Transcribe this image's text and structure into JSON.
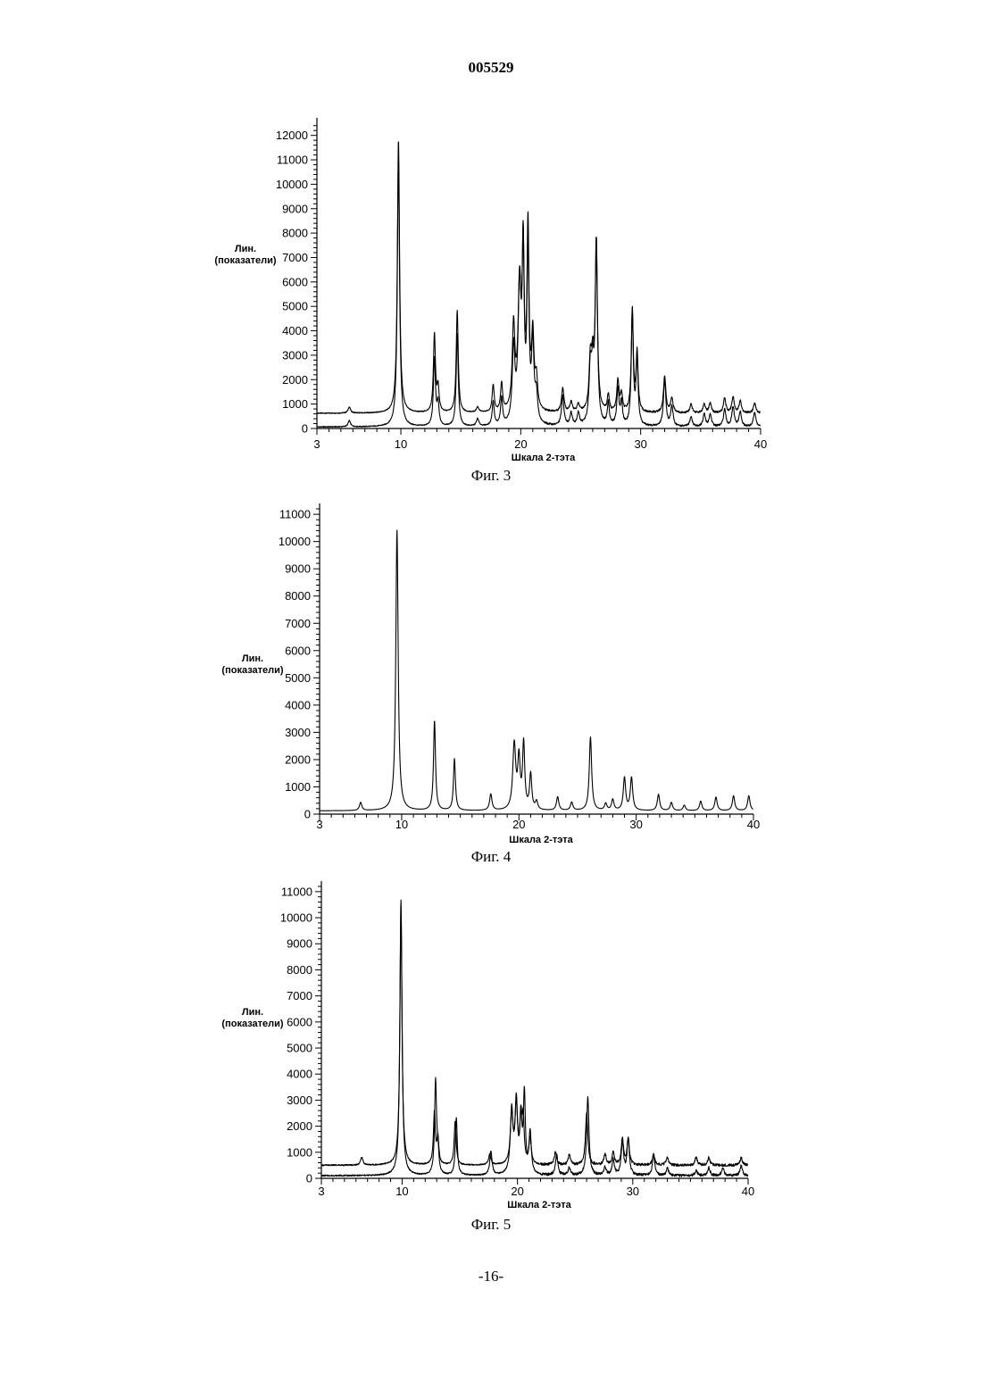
{
  "header": {
    "doc_number": "005529"
  },
  "footer": {
    "page_number": "-16-"
  },
  "chart_data": [
    {
      "type": "line",
      "caption": "Фиг. 3",
      "ylabel": [
        "Лин.",
        "(показатели)"
      ],
      "xlabel": "Шкала 2-тэта",
      "xlim": [
        3,
        40
      ],
      "ylim": [
        0,
        12500
      ],
      "x_ticks": [
        3,
        10,
        20,
        30,
        40
      ],
      "y_ticks": [
        0,
        1000,
        2000,
        3000,
        4000,
        5000,
        6000,
        7000,
        8000,
        9000,
        10000,
        11000,
        12000
      ],
      "series": [
        {
          "baseline": 620,
          "noise": 0.04,
          "peaks": [
            [
              5.7,
              250,
              0.12
            ],
            [
              9.8,
              11200,
              0.11
            ],
            [
              12.8,
              3200,
              0.1
            ],
            [
              13.1,
              1000,
              0.1
            ],
            [
              14.7,
              4200,
              0.1
            ],
            [
              16.4,
              220,
              0.12
            ],
            [
              17.7,
              1100,
              0.1
            ],
            [
              18.4,
              1150,
              0.1
            ],
            [
              19.4,
              3400,
              0.13
            ],
            [
              19.9,
              5000,
              0.15
            ],
            [
              20.2,
              6200,
              0.1
            ],
            [
              20.6,
              7400,
              0.1
            ],
            [
              21.0,
              3000,
              0.12
            ],
            [
              21.3,
              1200,
              0.12
            ],
            [
              23.5,
              1000,
              0.12
            ],
            [
              24.2,
              400,
              0.12
            ],
            [
              24.8,
              300,
              0.12
            ],
            [
              25.8,
              2000,
              0.12
            ],
            [
              26.3,
              6900,
              0.11
            ],
            [
              26.0,
              1800,
              0.12
            ],
            [
              27.3,
              700,
              0.1
            ],
            [
              28.1,
              1300,
              0.11
            ],
            [
              28.4,
              700,
              0.1
            ],
            [
              29.3,
              4200,
              0.1
            ],
            [
              29.7,
              2400,
              0.1
            ],
            [
              32.0,
              1500,
              0.12
            ],
            [
              32.6,
              600,
              0.12
            ],
            [
              34.2,
              350,
              0.12
            ],
            [
              35.3,
              350,
              0.12
            ],
            [
              35.8,
              400,
              0.12
            ],
            [
              37.0,
              600,
              0.12
            ],
            [
              37.7,
              650,
              0.12
            ],
            [
              38.3,
              500,
              0.12
            ],
            [
              39.5,
              400,
              0.12
            ]
          ]
        },
        {
          "baseline": 60,
          "noise": 0.04,
          "peaks": [
            [
              5.7,
              250,
              0.12
            ],
            [
              9.8,
              11000,
              0.11
            ],
            [
              12.8,
              2800,
              0.1
            ],
            [
              13.1,
              900,
              0.1
            ],
            [
              14.7,
              3800,
              0.1
            ],
            [
              16.4,
              300,
              0.12
            ],
            [
              17.7,
              1000,
              0.1
            ],
            [
              18.4,
              1100,
              0.1
            ],
            [
              19.4,
              3000,
              0.13
            ],
            [
              19.9,
              5400,
              0.15
            ],
            [
              20.2,
              6800,
              0.1
            ],
            [
              20.6,
              7000,
              0.1
            ],
            [
              21.0,
              3200,
              0.12
            ],
            [
              21.3,
              1100,
              0.12
            ],
            [
              23.5,
              1200,
              0.12
            ],
            [
              24.2,
              500,
              0.12
            ],
            [
              24.8,
              500,
              0.12
            ],
            [
              25.8,
              2200,
              0.12
            ],
            [
              26.3,
              7400,
              0.11
            ],
            [
              26.0,
              2000,
              0.12
            ],
            [
              27.3,
              900,
              0.1
            ],
            [
              28.1,
              1500,
              0.11
            ],
            [
              28.4,
              900,
              0.1
            ],
            [
              29.3,
              4600,
              0.1
            ],
            [
              29.7,
              2800,
              0.1
            ],
            [
              32.0,
              1900,
              0.12
            ],
            [
              32.6,
              800,
              0.12
            ],
            [
              34.2,
              400,
              0.12
            ],
            [
              35.3,
              500,
              0.12
            ],
            [
              35.8,
              500,
              0.12
            ],
            [
              37.0,
              700,
              0.12
            ],
            [
              37.7,
              800,
              0.12
            ],
            [
              38.3,
              600,
              0.12
            ],
            [
              39.5,
              600,
              0.12
            ]
          ]
        }
      ]
    },
    {
      "type": "line",
      "caption": "Фиг. 4",
      "ylabel": [
        "Лин.",
        "(показатели)"
      ],
      "xlabel": "Шкала 2-тэта",
      "xlim": [
        3,
        40
      ],
      "ylim": [
        0,
        11200
      ],
      "x_ticks": [
        3,
        10,
        20,
        30,
        40
      ],
      "y_ticks": [
        0,
        1000,
        2000,
        3000,
        4000,
        5000,
        6000,
        7000,
        8000,
        9000,
        10000,
        11000
      ],
      "series": [
        {
          "baseline": 120,
          "noise": 0.0,
          "peaks": [
            [
              6.5,
              300,
              0.12
            ],
            [
              9.6,
              10300,
              0.12
            ],
            [
              12.8,
              3300,
              0.1
            ],
            [
              14.5,
              1900,
              0.1
            ],
            [
              17.6,
              600,
              0.12
            ],
            [
              19.6,
              2400,
              0.15
            ],
            [
              20.0,
              1800,
              0.12
            ],
            [
              20.4,
              2400,
              0.11
            ],
            [
              21.0,
              1300,
              0.11
            ],
            [
              21.5,
              300,
              0.12
            ],
            [
              23.3,
              500,
              0.12
            ],
            [
              24.5,
              300,
              0.12
            ],
            [
              26.1,
              2700,
              0.12
            ],
            [
              27.4,
              250,
              0.12
            ],
            [
              28.0,
              400,
              0.12
            ],
            [
              29.0,
              1200,
              0.12
            ],
            [
              29.6,
              1200,
              0.12
            ],
            [
              31.9,
              600,
              0.12
            ],
            [
              33.0,
              300,
              0.12
            ],
            [
              34.1,
              200,
              0.12
            ],
            [
              35.5,
              350,
              0.12
            ],
            [
              36.8,
              500,
              0.12
            ],
            [
              38.3,
              550,
              0.12
            ],
            [
              39.6,
              550,
              0.12
            ]
          ]
        }
      ]
    },
    {
      "type": "line",
      "caption": "Фиг. 5",
      "ylabel": [
        "Лин.",
        "(показатели)"
      ],
      "xlabel": "Шкала 2-тэта",
      "xlim": [
        3,
        40
      ],
      "ylim": [
        0,
        11200
      ],
      "x_ticks": [
        3,
        10,
        20,
        30,
        40
      ],
      "y_ticks": [
        0,
        1000,
        2000,
        3000,
        4000,
        5000,
        6000,
        7000,
        8000,
        9000,
        10000,
        11000
      ],
      "series": [
        {
          "baseline": 500,
          "noise": 0.05,
          "peaks": [
            [
              6.5,
              300,
              0.12
            ],
            [
              9.9,
              9800,
              0.11
            ],
            [
              12.8,
              2000,
              0.1
            ],
            [
              13.1,
              1000,
              0.1
            ],
            [
              14.6,
              1700,
              0.1
            ],
            [
              17.6,
              400,
              0.12
            ],
            [
              19.5,
              1900,
              0.14
            ],
            [
              19.9,
              2200,
              0.13
            ],
            [
              20.3,
              1700,
              0.11
            ],
            [
              20.5,
              1600,
              0.1
            ],
            [
              21.1,
              1000,
              0.12
            ],
            [
              23.3,
              500,
              0.12
            ],
            [
              24.5,
              400,
              0.12
            ],
            [
              26.0,
              2000,
              0.12
            ],
            [
              27.6,
              400,
              0.12
            ],
            [
              28.3,
              500,
              0.12
            ],
            [
              29.1,
              1000,
              0.12
            ],
            [
              29.6,
              1000,
              0.12
            ],
            [
              31.8,
              400,
              0.12
            ],
            [
              33.0,
              300,
              0.12
            ],
            [
              35.5,
              300,
              0.12
            ],
            [
              36.6,
              300,
              0.12
            ],
            [
              39.4,
              300,
              0.12
            ]
          ]
        },
        {
          "baseline": 100,
          "noise": 0.05,
          "peaks": [
            [
              9.9,
              10600,
              0.11
            ],
            [
              12.9,
              3600,
              0.1
            ],
            [
              13.1,
              800,
              0.1
            ],
            [
              14.7,
              2200,
              0.1
            ],
            [
              17.7,
              900,
              0.12
            ],
            [
              19.5,
              2400,
              0.14
            ],
            [
              19.9,
              2700,
              0.13
            ],
            [
              20.3,
              2000,
              0.11
            ],
            [
              20.6,
              3000,
              0.1
            ],
            [
              21.1,
              1600,
              0.12
            ],
            [
              23.4,
              800,
              0.12
            ],
            [
              24.5,
              300,
              0.12
            ],
            [
              26.1,
              3000,
              0.12
            ],
            [
              27.6,
              300,
              0.12
            ],
            [
              28.3,
              600,
              0.12
            ],
            [
              29.1,
              1300,
              0.12
            ],
            [
              29.6,
              1400,
              0.12
            ],
            [
              31.8,
              800,
              0.12
            ],
            [
              33.0,
              300,
              0.12
            ],
            [
              35.5,
              200,
              0.12
            ],
            [
              36.6,
              300,
              0.12
            ],
            [
              37.8,
              300,
              0.12
            ],
            [
              39.4,
              400,
              0.12
            ]
          ]
        }
      ]
    }
  ]
}
